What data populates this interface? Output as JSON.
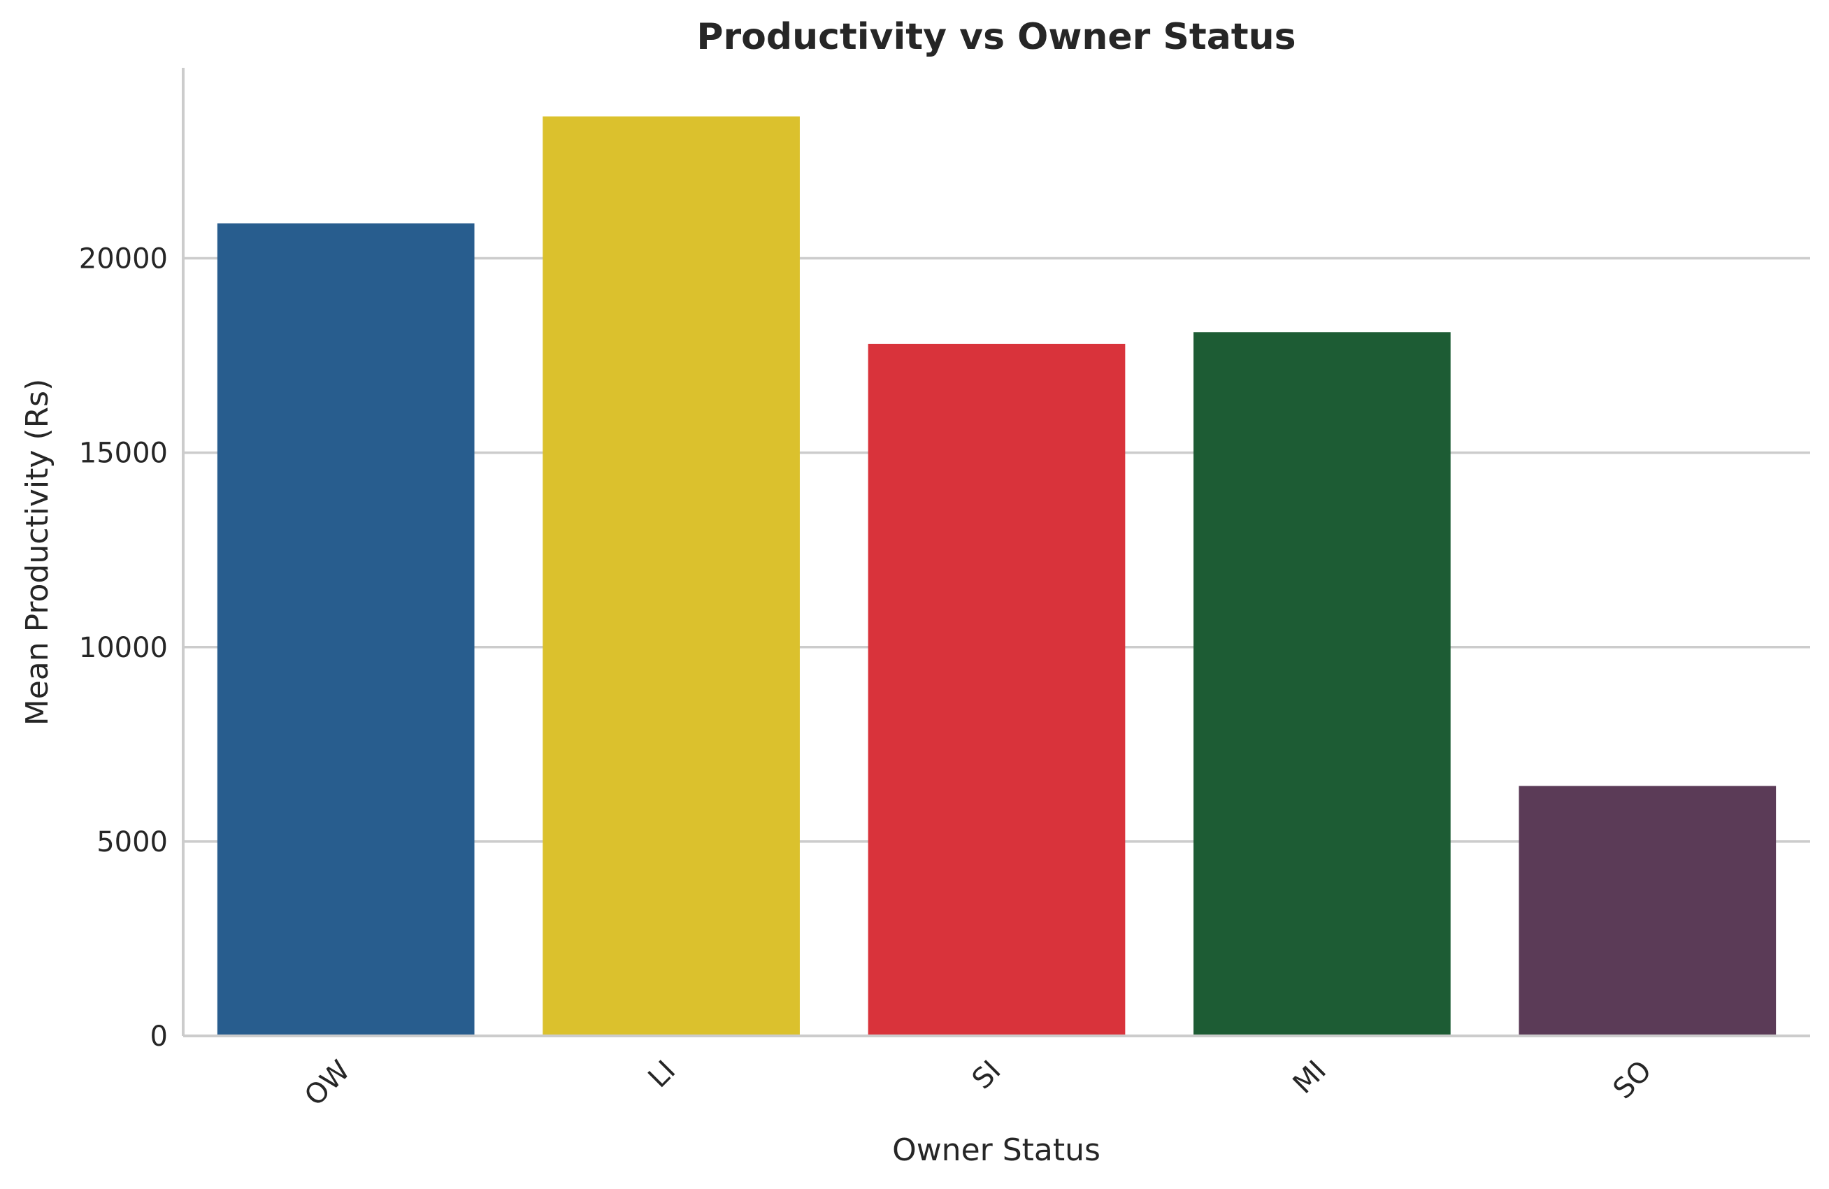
{
  "chart_data": {
    "type": "bar",
    "title": "Productivity vs Owner Status",
    "xlabel": "Owner Status",
    "ylabel": "Mean Productivity (Rs)",
    "categories": [
      "OW",
      "LI",
      "SI",
      "MI",
      "SO"
    ],
    "values": [
      20900,
      23650,
      17800,
      18100,
      6430
    ],
    "colors": [
      "#285d8e",
      "#dbc12d",
      "#d9333b",
      "#1d5c34",
      "#5b3b57"
    ],
    "ylim": [
      0,
      24900
    ],
    "yticks": [
      0,
      5000,
      10000,
      15000,
      20000
    ],
    "grid": "y",
    "legend": "none"
  }
}
